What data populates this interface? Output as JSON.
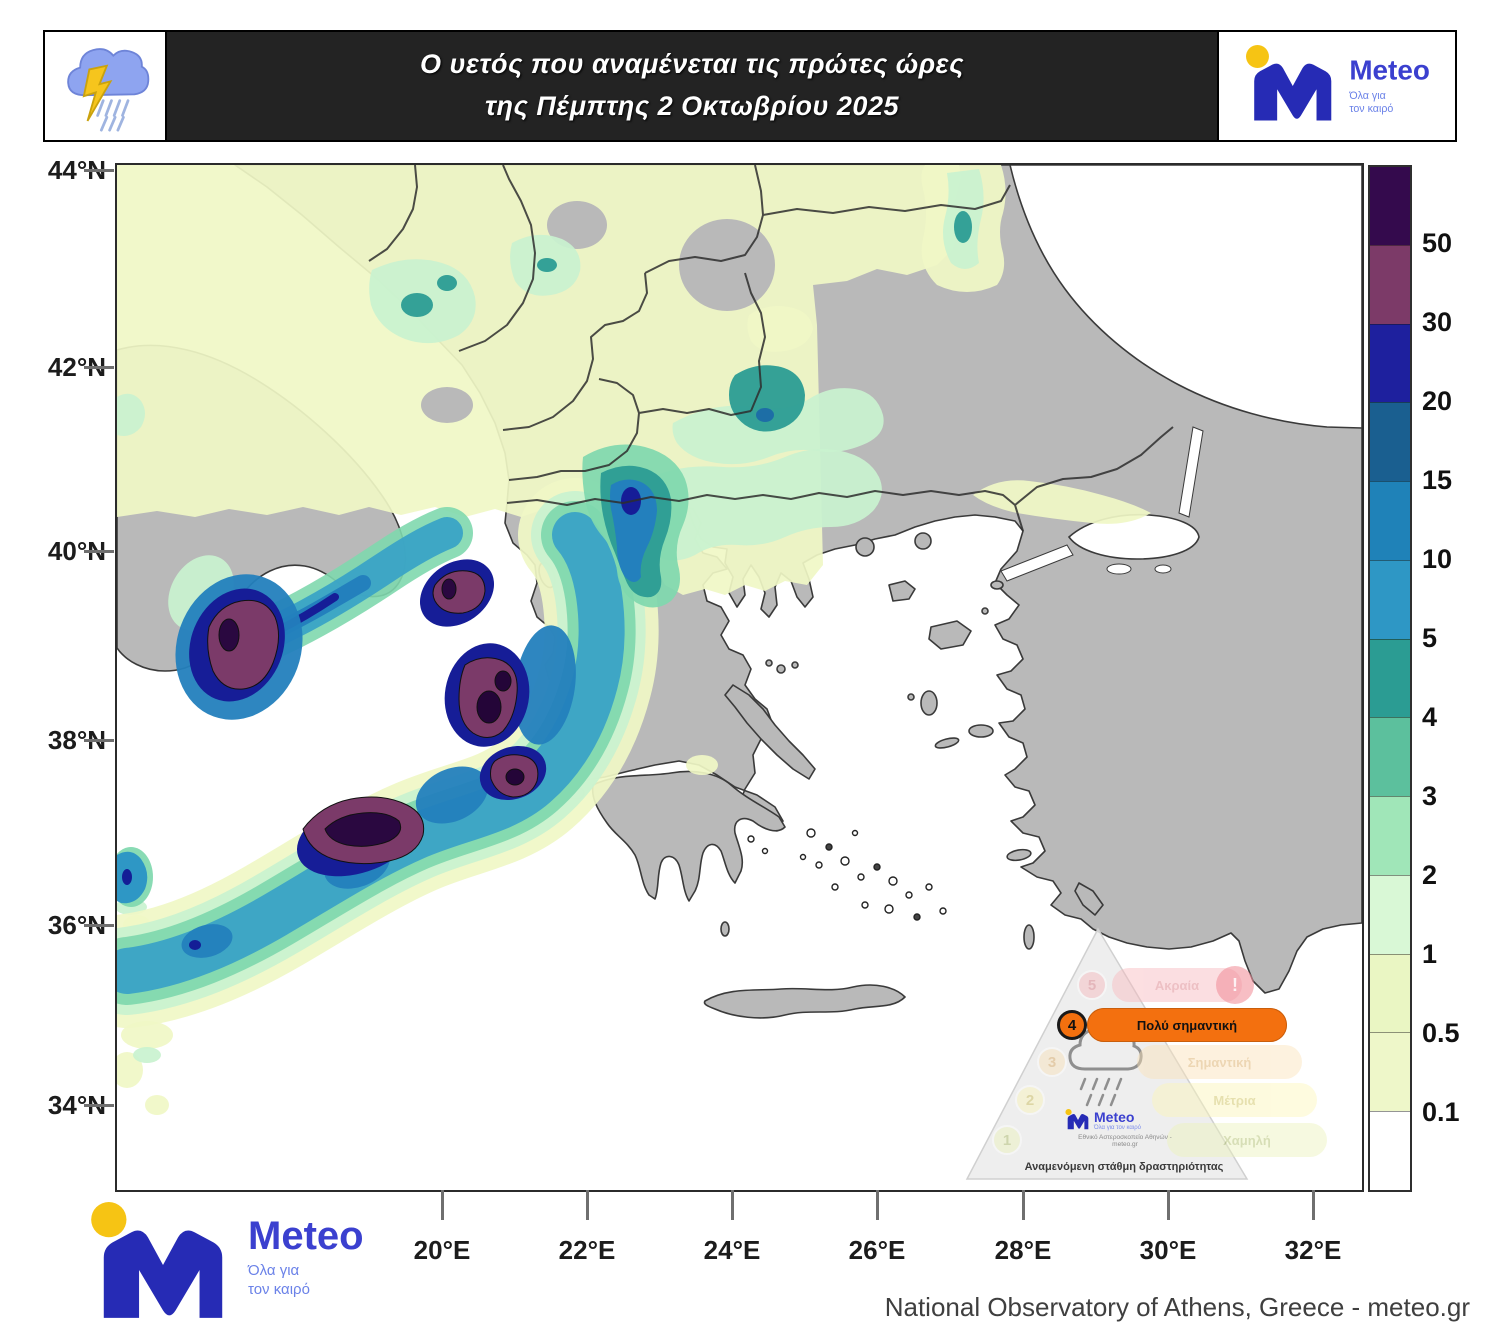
{
  "header": {
    "title_line1": "Ο υετός που αναμένεται τις πρώτες ώρες",
    "title_line2": "της Πέμπτης 2 Οκτωβρίου 2025"
  },
  "brand": {
    "name": "Meteo",
    "tagline_line1": "Όλα για",
    "tagline_line2": "τον καιρό"
  },
  "axes": {
    "lat": [
      "44°N",
      "42°N",
      "40°N",
      "38°N",
      "36°N",
      "34°N"
    ],
    "lon": [
      "20°E",
      "22°E",
      "24°E",
      "26°E",
      "28°E",
      "30°E",
      "32°E"
    ]
  },
  "legend": {
    "boundary_labels": [
      "50",
      "30",
      "20",
      "15",
      "10",
      "5",
      "4",
      "3",
      "2",
      "1",
      "0.5",
      "0.1"
    ],
    "colors": [
      "#340a4d",
      "#7c3a68",
      "#1e209e",
      "#1a5f90",
      "#1f82b8",
      "#2e97c5",
      "#2b9c93",
      "#5cc09d",
      "#a0e6b8",
      "#d9f8d6",
      "#eaf6c3",
      "#eef7c9",
      "#ffffff"
    ]
  },
  "inset": {
    "levels": [
      {
        "num": "5",
        "label": "Ακραία",
        "pill": "#f8b7bd",
        "text": "#d8747e",
        "active": false
      },
      {
        "num": "4",
        "label": "Πολύ σημαντική",
        "pill": "#f3700f",
        "text": "#111111",
        "active": true
      },
      {
        "num": "3",
        "label": "Σημαντική",
        "pill": "#fbe2b8",
        "text": "#d8a558",
        "active": false
      },
      {
        "num": "2",
        "label": "Μέτρια",
        "pill": "#fcf6b8",
        "text": "#c9bb4e",
        "active": false
      },
      {
        "num": "1",
        "label": "Χαμηλή",
        "pill": "#ecf3bb",
        "text": "#a8b860",
        "active": false
      }
    ],
    "warning_mark": "!",
    "caption": "Αναμενόμενη στάθμη δραστηριότητας",
    "source": "Εθνικό Αστεροσκοπείο Αθηνών - meteo.gr"
  },
  "attribution": "National Observatory of Athens, Greece - meteo.gr",
  "colors": {
    "header_bg": "#232323",
    "land": "#b9b9b9",
    "sea": "#ffffff",
    "brand_blue": "#262bb5",
    "brand_yellow": "#f6c414"
  }
}
